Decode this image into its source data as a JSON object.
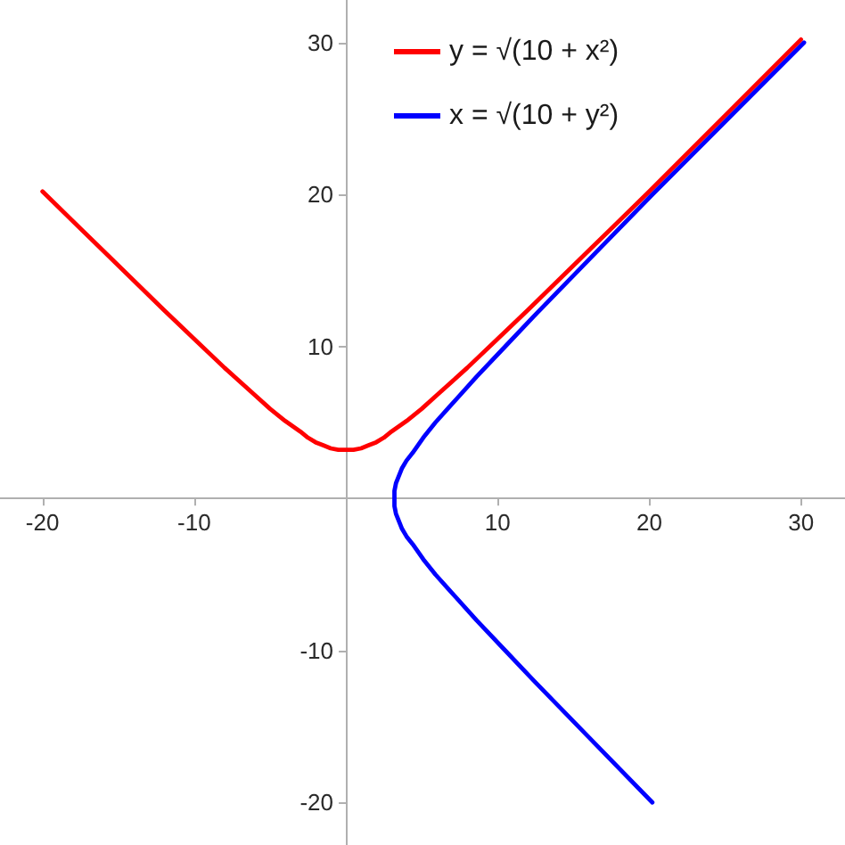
{
  "chart_data": {
    "type": "line",
    "series": [
      {
        "name": "y = √(10 + x²)",
        "color": "#ff0000",
        "x": [
          -20,
          -16,
          -12,
          -10,
          -8,
          -6,
          -5,
          -4,
          -3,
          -2.5,
          -2,
          -1.5,
          -1,
          -0.5,
          0,
          0.5,
          1,
          1.5,
          2,
          2.5,
          3,
          4,
          5,
          6,
          8,
          10,
          12,
          16,
          20,
          25,
          30
        ],
        "values": [
          20.2,
          16.3,
          12.4,
          10.5,
          8.6,
          6.8,
          5.9,
          5.1,
          4.4,
          4.0,
          3.7,
          3.5,
          3.3,
          3.2,
          3.2,
          3.2,
          3.3,
          3.5,
          3.7,
          4.0,
          4.4,
          5.1,
          5.9,
          6.8,
          8.6,
          10.5,
          12.4,
          16.3,
          20.2,
          25.2,
          30.2
        ]
      },
      {
        "name": "x = √(10 + y²)",
        "color": "#0000ff",
        "x": [
          20.2,
          16.3,
          12.4,
          10.5,
          8.6,
          6.8,
          5.9,
          5.1,
          4.4,
          4.0,
          3.7,
          3.5,
          3.3,
          3.2,
          3.2,
          3.2,
          3.3,
          3.5,
          3.7,
          4.0,
          4.4,
          5.1,
          5.9,
          6.8,
          8.6,
          10.5,
          12.4,
          16.3,
          20.2,
          25.2,
          30.2
        ],
        "values": [
          -20,
          -16,
          -12,
          -10,
          -8,
          -6,
          -5,
          -4,
          -3,
          -2.5,
          -2,
          -1.5,
          -1,
          -0.5,
          0,
          0.5,
          1,
          1.5,
          2,
          2.5,
          3,
          4,
          5,
          6,
          8,
          10,
          12,
          16,
          20,
          25,
          30
        ]
      }
    ],
    "xlim": [
      -22.8,
      32.9
    ],
    "ylim": [
      -22.8,
      32.8
    ],
    "xticks": [
      -20,
      -10,
      10,
      20,
      30
    ],
    "yticks": [
      -20,
      -10,
      10,
      20,
      30
    ],
    "grid": false,
    "legend": "top",
    "marker": "none",
    "line_style": "solid"
  }
}
